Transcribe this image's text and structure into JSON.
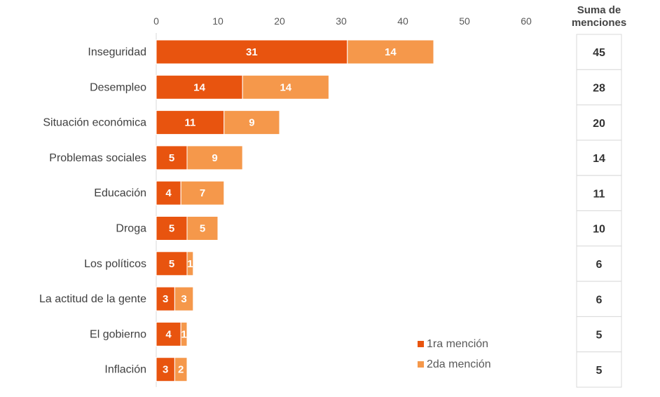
{
  "chart_data": {
    "type": "bar",
    "orientation": "horizontal",
    "stacked": true,
    "categories": [
      "Inseguridad",
      "Desempleo",
      "Situación económica",
      "Problemas sociales",
      "Educación",
      "Droga",
      "Los políticos",
      "La actitud de la gente",
      "El gobierno",
      "Inflación"
    ],
    "series": [
      {
        "name": "1ra mención",
        "color": "#e8540f",
        "values": [
          31,
          14,
          11,
          5,
          4,
          5,
          5,
          3,
          4,
          3
        ]
      },
      {
        "name": "2da mención",
        "color": "#f5984b",
        "values": [
          14,
          14,
          9,
          9,
          7,
          5,
          1,
          3,
          1,
          2
        ]
      }
    ],
    "x_ticks": [
      0,
      10,
      20,
      30,
      40,
      50,
      60
    ],
    "xlim": [
      0,
      60
    ],
    "legend_position": "bottom-right",
    "side_column": {
      "title": "Suma de menciones",
      "values": [
        45,
        28,
        20,
        14,
        11,
        10,
        6,
        6,
        5,
        5
      ]
    }
  }
}
